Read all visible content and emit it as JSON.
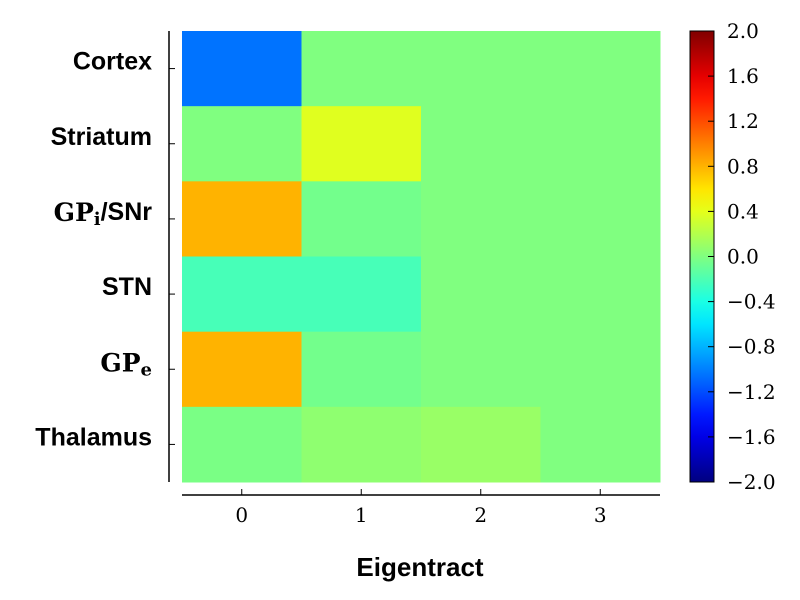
{
  "chart_data": {
    "type": "heatmap",
    "title": "",
    "xlabel": "Eigentract",
    "ylabel": "",
    "x_categories": [
      "0",
      "1",
      "2",
      "3"
    ],
    "y_categories": [
      {
        "main": "Cortex",
        "sub": ""
      },
      {
        "main": "Striatum",
        "sub": ""
      },
      {
        "main": "GP",
        "sub": "i",
        "suffix": "/SNr"
      },
      {
        "main": "STN",
        "sub": ""
      },
      {
        "main": "GP",
        "sub": "e",
        "suffix": ""
      },
      {
        "main": "Thalamus",
        "sub": ""
      }
    ],
    "values": [
      [
        -1.05,
        0.0,
        0.0,
        0.0
      ],
      [
        0.0,
        0.38,
        0.0,
        0.0
      ],
      [
        0.8,
        -0.05,
        0.0,
        0.0
      ],
      [
        -0.22,
        -0.22,
        0.0,
        0.0
      ],
      [
        0.8,
        -0.05,
        0.0,
        0.0
      ],
      [
        -0.02,
        0.06,
        0.1,
        0.0
      ]
    ],
    "colormap": "jet",
    "vmin": -2.0,
    "vmax": 2.0,
    "colorbar_ticks": [
      "2.0",
      "1.6",
      "1.2",
      "0.8",
      "0.4",
      "0.0",
      "−0.4",
      "−0.8",
      "−1.2",
      "−1.6",
      "−2.0"
    ],
    "colorbar_tick_values": [
      2.0,
      1.6,
      1.2,
      0.8,
      0.4,
      0.0,
      -0.4,
      -0.8,
      -1.2,
      -1.6,
      -2.0
    ],
    "grid": false
  }
}
